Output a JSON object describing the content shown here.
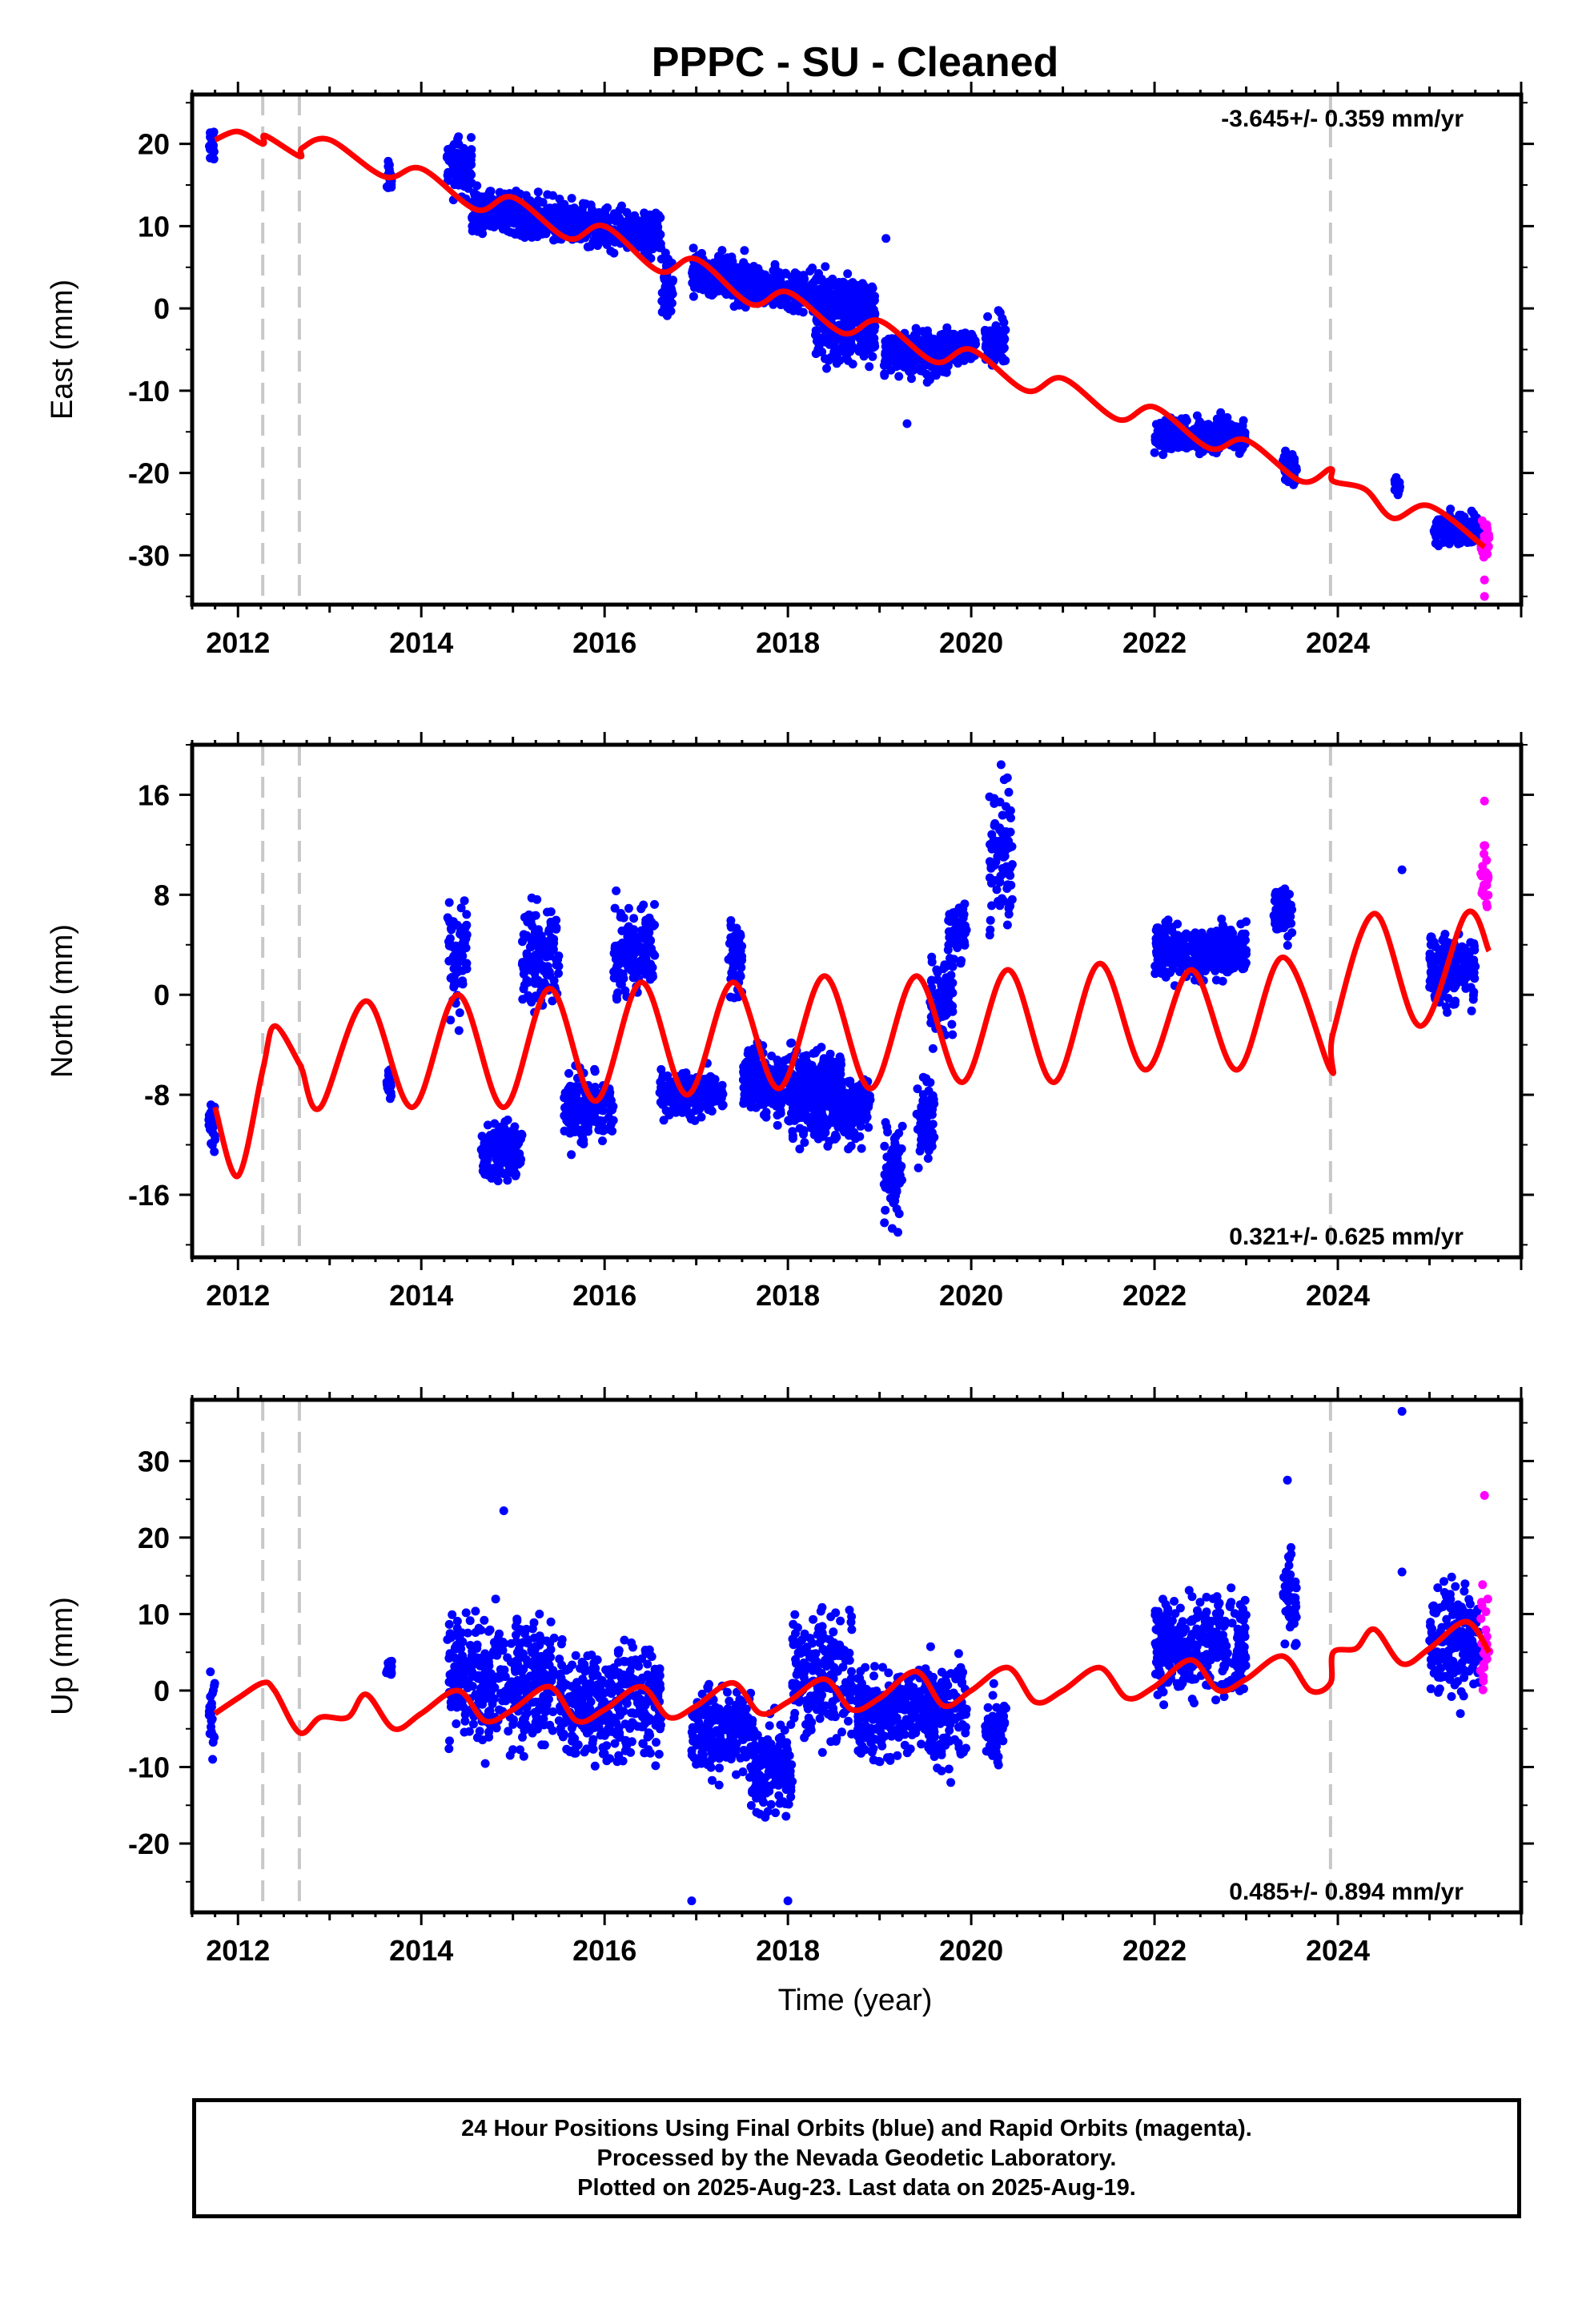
{
  "title": "PPPC  - SU - Cleaned",
  "xlabel": "Time (year)",
  "footer": {
    "line1": "24 Hour Positions Using Final Orbits (blue) and Rapid Orbits (magenta).",
    "line2": "Processed by the Nevada Geodetic Laboratory.",
    "line3": "Plotted on 2025-Aug-23. Last data on 2025-Aug-19."
  },
  "colors": {
    "final": "#0000ff",
    "rapid": "#ff00ff",
    "model": "#ff0000",
    "breaks": "#c8c8c8"
  },
  "chart_data": [
    {
      "type": "scatter",
      "ylabel": "East (mm)",
      "rate": "-3.645+/- 0.359 mm/yr",
      "rate_position": "top-right",
      "xlim": [
        2011.5,
        2026.0
      ],
      "ylim": [
        -36,
        26
      ],
      "xticks": [
        "2012",
        "2014",
        "2016",
        "2018",
        "2020",
        "2022",
        "2024"
      ],
      "yticks": [
        "20",
        "10",
        "0",
        "-10",
        "-20",
        "-30"
      ],
      "breaks": [
        2012.27,
        2012.67,
        2023.92
      ],
      "final_clusters": [
        {
          "x": [
            2011.68,
            2011.75
          ],
          "center": 20,
          "spread": 2
        },
        {
          "x": [
            2013.62,
            2013.68
          ],
          "center": 16,
          "spread": 1.5
        },
        {
          "x": [
            2014.28,
            2014.55
          ],
          "center": 17,
          "spread": 3
        },
        {
          "x": [
            2014.55,
            2016.62
          ],
          "center": 10.5,
          "spread": 2.2,
          "drift": -3
        },
        {
          "x": [
            2016.62,
            2016.75
          ],
          "center": 3,
          "spread": 3
        },
        {
          "x": [
            2016.95,
            2018.95
          ],
          "center": 2.5,
          "spread": 2.3,
          "drift": -4
        },
        {
          "x": [
            2018.3,
            2018.95
          ],
          "center": -3,
          "spread": 3
        },
        {
          "x": [
            2019.05,
            2019.75
          ],
          "center": -5.5,
          "spread": 2.5
        },
        {
          "x": [
            2019.75,
            2020.05
          ],
          "center": -4.5,
          "spread": 1.5
        },
        {
          "x": [
            2020.15,
            2020.38
          ],
          "center": -4,
          "spread": 2.5
        },
        {
          "x": [
            2022.0,
            2023.0
          ],
          "center": -15.5,
          "spread": 1.8
        },
        {
          "x": [
            2023.4,
            2023.55
          ],
          "center": -19.5,
          "spread": 1.6
        },
        {
          "x": [
            2024.62,
            2024.68
          ],
          "center": -21.5,
          "spread": 1
        },
        {
          "x": [
            2025.05,
            2025.55
          ],
          "center": -27,
          "spread": 1.6
        }
      ],
      "rapid_cluster": {
        "x": [
          2025.55,
          2025.65
        ],
        "center": -28,
        "spread": 2.5
      },
      "outliers": [
        [
          2019.07,
          8.5
        ],
        [
          2019.3,
          -14
        ],
        [
          2025.6,
          -35
        ],
        [
          2025.6,
          -33
        ]
      ],
      "model": {
        "x": [
          2011.75,
          2012.0,
          2012.27,
          2012.3,
          2012.67,
          2012.7,
          2013.0,
          2013.6,
          2014.0,
          2014.6,
          2015.0,
          2015.6,
          2016.0,
          2016.6,
          2017.0,
          2017.6,
          2018.0,
          2018.6,
          2019.0,
          2019.6,
          2020.0,
          2020.6,
          2021.0,
          2021.6,
          2022.0,
          2022.6,
          2023.0,
          2023.6,
          2023.92,
          2023.95,
          2024.3,
          2024.6,
          2025.0,
          2025.6
        ],
        "y": [
          20.5,
          21.5,
          20,
          21,
          18.5,
          19.5,
          20.5,
          16,
          17,
          12,
          13.5,
          8.5,
          10,
          4.5,
          6,
          0.5,
          2,
          -3,
          -1.5,
          -6.5,
          -5,
          -10,
          -8.5,
          -13.5,
          -12,
          -17,
          -16,
          -21,
          -19.5,
          -21,
          -22,
          -25.5,
          -24,
          -29
        ]
      },
      "sample_x": [
        2013.62,
        2014.4,
        2015.0,
        2016.0,
        2017.0,
        2018.0,
        2019.0,
        2020.0,
        2022.0,
        2023.0,
        2025.2,
        2025.55
      ]
    },
    {
      "type": "scatter",
      "ylabel": "North (mm)",
      "rate": "0.321+/- 0.625 mm/yr",
      "rate_position": "bottom-right",
      "xlim": [
        2011.5,
        2026.0
      ],
      "ylim": [
        -21,
        20
      ],
      "xticks": [
        "2012",
        "2014",
        "2016",
        "2018",
        "2020",
        "2022",
        "2024"
      ],
      "yticks": [
        "16",
        "8",
        "0",
        "-8",
        "-16"
      ],
      "breaks": [
        2012.27,
        2012.67,
        2023.92
      ],
      "final_clusters": [
        {
          "x": [
            2011.68,
            2011.75
          ],
          "center": -10,
          "spread": 2
        },
        {
          "x": [
            2013.62,
            2013.68
          ],
          "center": -7,
          "spread": 1
        },
        {
          "x": [
            2014.28,
            2014.5
          ],
          "center": 3,
          "spread": 4
        },
        {
          "x": [
            2014.65,
            2015.1
          ],
          "center": -12.5,
          "spread": 2
        },
        {
          "x": [
            2015.1,
            2015.5
          ],
          "center": 3,
          "spread": 3.5
        },
        {
          "x": [
            2015.55,
            2016.1
          ],
          "center": -9,
          "spread": 2.5
        },
        {
          "x": [
            2016.1,
            2016.55
          ],
          "center": 3.5,
          "spread": 3
        },
        {
          "x": [
            2016.6,
            2017.3
          ],
          "center": -8,
          "spread": 1.5
        },
        {
          "x": [
            2017.35,
            2017.5
          ],
          "center": 3,
          "spread": 3
        },
        {
          "x": [
            2017.5,
            2018.6
          ],
          "center": -7,
          "spread": 2.5
        },
        {
          "x": [
            2018.05,
            2018.9
          ],
          "center": -9,
          "spread": 2.5
        },
        {
          "x": [
            2019.05,
            2019.25
          ],
          "center": -14,
          "spread": 4
        },
        {
          "x": [
            2019.4,
            2019.6
          ],
          "center": -10,
          "spread": 3
        },
        {
          "x": [
            2019.55,
            2019.8
          ],
          "center": 0,
          "spread": 3
        },
        {
          "x": [
            2019.75,
            2019.95
          ],
          "center": 5,
          "spread": 2
        },
        {
          "x": [
            2020.2,
            2020.45
          ],
          "center": 11,
          "spread": 5
        },
        {
          "x": [
            2022.0,
            2023.0
          ],
          "center": 3.5,
          "spread": 2
        },
        {
          "x": [
            2023.3,
            2023.5
          ],
          "center": 6.5,
          "spread": 2
        },
        {
          "x": [
            2025.0,
            2025.5
          ],
          "center": 2,
          "spread": 2.5
        }
      ],
      "rapid_cluster": {
        "x": [
          2025.55,
          2025.65
        ],
        "center": 10,
        "spread": 3
      },
      "outliers": [
        [
          2019.2,
          -19
        ],
        [
          2024.7,
          10
        ],
        [
          2025.6,
          15.5
        ]
      ],
      "model": {
        "x": [
          2011.75,
          2012.0,
          2012.27,
          2012.4,
          2012.67,
          2012.7,
          2012.9,
          2013.4,
          2013.9,
          2014.4,
          2014.9,
          2015.4,
          2015.9,
          2016.4,
          2016.9,
          2017.4,
          2017.9,
          2018.4,
          2018.9,
          2019.4,
          2019.9,
          2020.4,
          2020.9,
          2021.4,
          2021.9,
          2022.4,
          2022.9,
          2023.4,
          2023.92,
          2023.95,
          2024.4,
          2024.9,
          2025.4,
          2025.65
        ],
        "y": [
          -9,
          -14.5,
          -6,
          -2.5,
          -5.5,
          -6,
          -9,
          -0.5,
          -9,
          0,
          -9,
          0.5,
          -8.5,
          1,
          -8,
          1,
          -7.5,
          1.5,
          -7.5,
          1.5,
          -7,
          2,
          -7,
          2.5,
          -6,
          2,
          -6,
          3,
          -6,
          -3,
          6.5,
          -2.5,
          6.5,
          3.5
        ]
      }
    },
    {
      "type": "scatter",
      "ylabel": "Up (mm)",
      "rate": "0.485+/- 0.894 mm/yr",
      "rate_position": "bottom-right",
      "xlim": [
        2011.5,
        2026.0
      ],
      "ylim": [
        -29,
        38
      ],
      "xticks": [
        "2012",
        "2014",
        "2016",
        "2018",
        "2020",
        "2022",
        "2024"
      ],
      "yticks": [
        "30",
        "20",
        "10",
        "0",
        "-10",
        "-20"
      ],
      "breaks": [
        2012.27,
        2012.67,
        2023.92
      ],
      "final_clusters": [
        {
          "x": [
            2011.68,
            2011.75
          ],
          "center": -3,
          "spread": 5
        },
        {
          "x": [
            2013.62,
            2013.68
          ],
          "center": 3,
          "spread": 1
        },
        {
          "x": [
            2014.28,
            2015.45
          ],
          "center": 1.5,
          "spread": 7
        },
        {
          "x": [
            2015.5,
            2016.62
          ],
          "center": -1.5,
          "spread": 7
        },
        {
          "x": [
            2016.95,
            2017.6
          ],
          "center": -5,
          "spread": 5
        },
        {
          "x": [
            2017.6,
            2018.05
          ],
          "center": -10,
          "spread": 6
        },
        {
          "x": [
            2018.05,
            2018.7
          ],
          "center": 2,
          "spread": 7
        },
        {
          "x": [
            2018.75,
            2019.5
          ],
          "center": -3,
          "spread": 5
        },
        {
          "x": [
            2019.5,
            2019.95
          ],
          "center": -3,
          "spread": 6
        },
        {
          "x": [
            2020.15,
            2020.38
          ],
          "center": -5,
          "spread": 4
        },
        {
          "x": [
            2022.0,
            2023.0
          ],
          "center": 6,
          "spread": 6
        },
        {
          "x": [
            2023.4,
            2023.55
          ],
          "center": 12,
          "spread": 6
        },
        {
          "x": [
            2025.0,
            2025.55
          ],
          "center": 7,
          "spread": 6
        }
      ],
      "rapid_cluster": {
        "x": [
          2025.55,
          2025.65
        ],
        "center": 5,
        "spread": 8
      },
      "outliers": [
        [
          2024.7,
          36.5
        ],
        [
          2024.7,
          15.5
        ],
        [
          2016.95,
          -27.5
        ],
        [
          2018.0,
          -27.5
        ],
        [
          2023.45,
          27.5
        ],
        [
          2014.9,
          23.5
        ],
        [
          2025.6,
          25.5
        ]
      ],
      "model": {
        "x": [
          2011.75,
          2012.0,
          2012.27,
          2012.4,
          2012.67,
          2012.9,
          2013.2,
          2013.4,
          2013.7,
          2014.0,
          2014.4,
          2014.7,
          2015.0,
          2015.4,
          2015.7,
          2016.0,
          2016.4,
          2016.7,
          2017.0,
          2017.4,
          2017.7,
          2018.0,
          2018.4,
          2018.7,
          2019.0,
          2019.4,
          2019.7,
          2020.0,
          2020.4,
          2020.7,
          2021.0,
          2021.4,
          2021.7,
          2022.0,
          2022.4,
          2022.7,
          2023.0,
          2023.4,
          2023.7,
          2023.92,
          2023.95,
          2024.2,
          2024.4,
          2024.7,
          2025.0,
          2025.4,
          2025.65
        ],
        "y": [
          -3,
          -1,
          1,
          0,
          -5.5,
          -3.5,
          -3.5,
          -0.5,
          -5,
          -3,
          0,
          -4,
          -2.5,
          0.5,
          -4,
          -2.5,
          0.5,
          -3.5,
          -2,
          1,
          -3,
          -1.5,
          1.5,
          -2.5,
          -1,
          2.5,
          -2,
          0,
          3,
          -1.5,
          0,
          3,
          -1,
          0.5,
          4,
          0,
          1.5,
          4.5,
          0,
          1,
          5,
          5.5,
          8,
          3.5,
          5.5,
          9,
          5
        ]
      }
    }
  ]
}
